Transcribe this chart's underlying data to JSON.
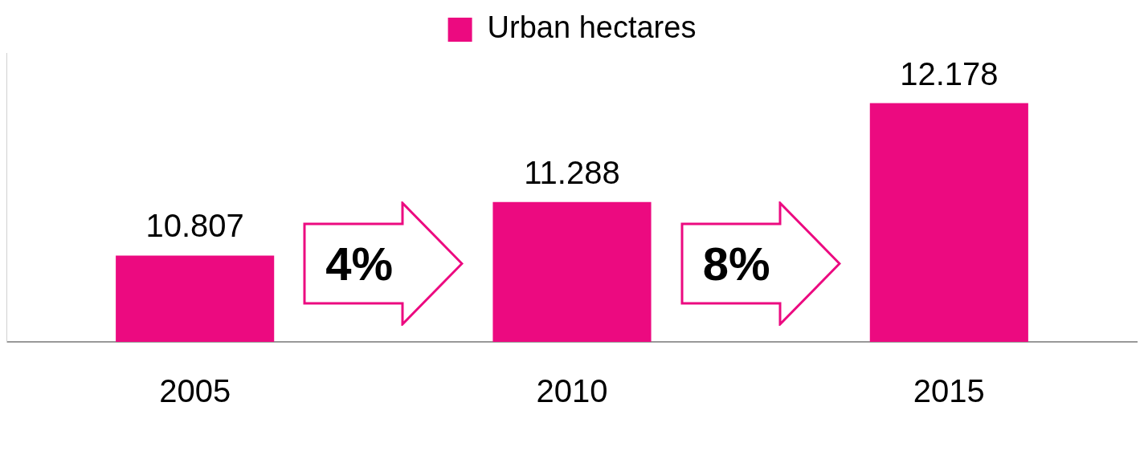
{
  "chart_data": {
    "type": "bar",
    "categories": [
      "2005",
      "2010",
      "2015"
    ],
    "series": [
      {
        "name": "Urban hectares",
        "color": "#ec0a80",
        "values": [
          10.807,
          11.288,
          12.178
        ]
      }
    ],
    "ylim": [
      10.03,
      12.63
    ],
    "tick_labels": "x",
    "grid": false,
    "legend": "top",
    "data_labels": true,
    "annotations": [
      "4%",
      "8%"
    ]
  }
}
